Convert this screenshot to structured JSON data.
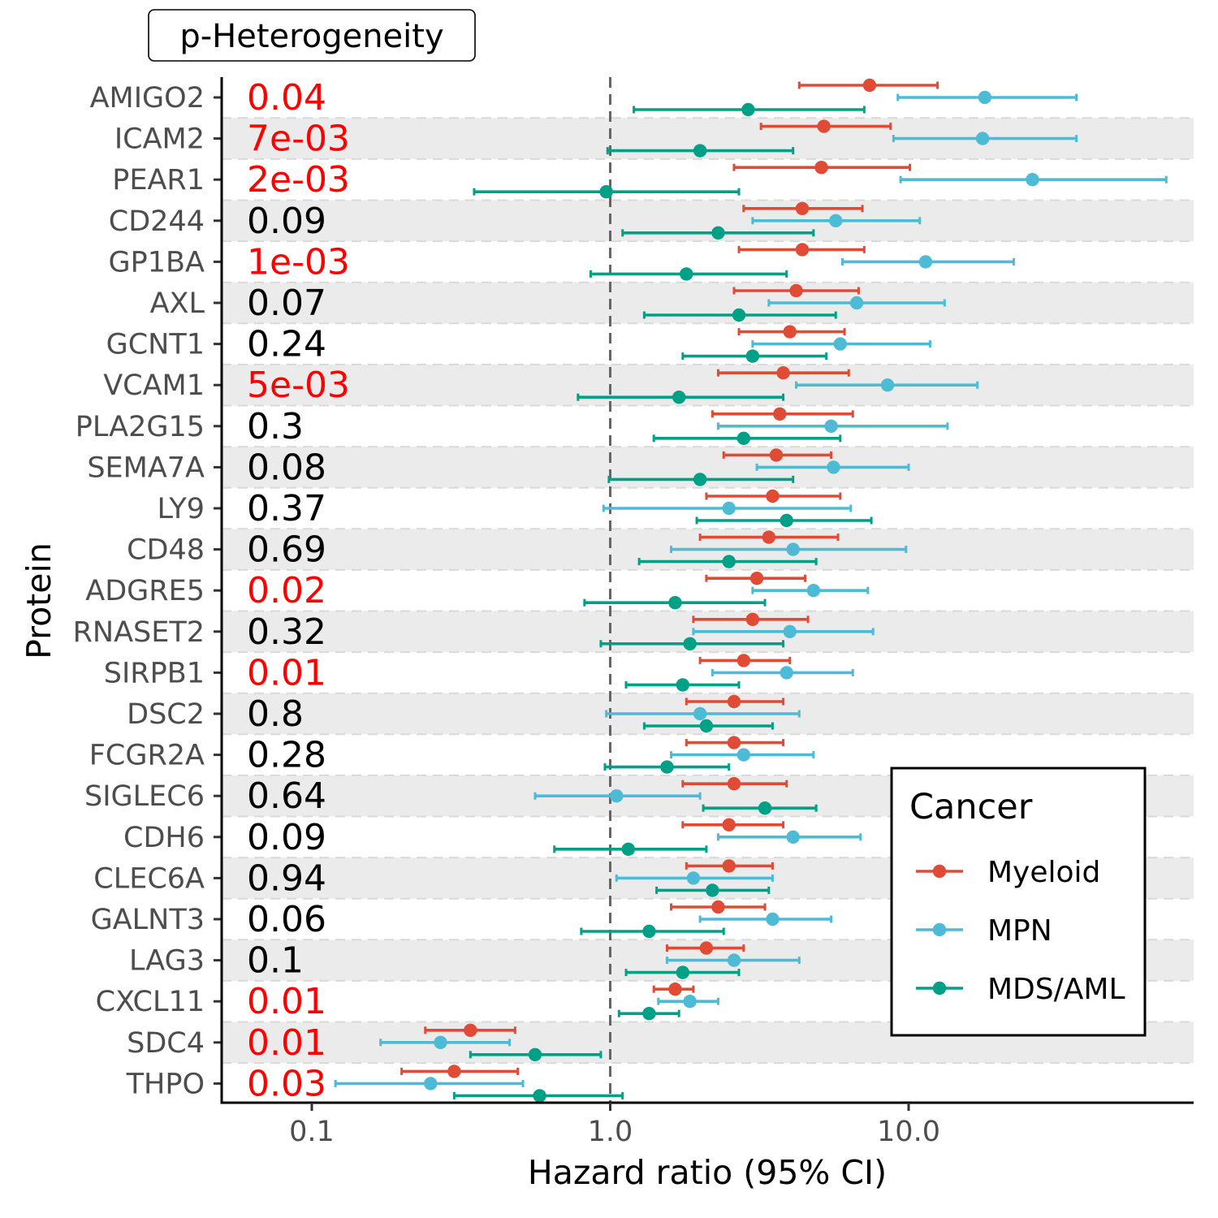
{
  "chart_data": {
    "type": "scatter",
    "subtype": "forest-plot",
    "xlabel": "Hazard ratio (95% CI)",
    "ylabel": "Protein",
    "x_scale": "log10",
    "xlim": [
      0.052,
      90
    ],
    "x_ticks": [
      0.1,
      1.0,
      10.0
    ],
    "x_tick_labels": [
      "0.1",
      "1.0",
      "10.0"
    ],
    "reference_line": 1.0,
    "pvalue_header": "p-Heterogeneity",
    "legend": {
      "title": "Cancer",
      "position": "right",
      "entries": [
        "Myeloid",
        "MPN",
        "MDS/AML"
      ]
    },
    "colors": {
      "Myeloid": "#E04B35",
      "MPN": "#4DBBD5",
      "MDS/AML": "#00A087",
      "significant_p": "#FF0000",
      "nonsignificant_p": "#000000",
      "stripe": "#EBEBEB",
      "reference_line": "#666666"
    },
    "proteins": [
      "AMIGO2",
      "ICAM2",
      "PEAR1",
      "CD244",
      "GP1BA",
      "AXL",
      "GCNT1",
      "VCAM1",
      "PLA2G15",
      "SEMA7A",
      "LY9",
      "CD48",
      "ADGRE5",
      "RNASET2",
      "SIRPB1",
      "DSC2",
      "FCGR2A",
      "SIGLEC6",
      "CDH6",
      "CLEC6A",
      "GALNT3",
      "LAG3",
      "CXCL11",
      "SDC4",
      "THPO"
    ],
    "p_heterogeneity": [
      "0.04",
      "7e-03",
      "2e-03",
      "0.09",
      "1e-03",
      "0.07",
      "0.24",
      "5e-03",
      "0.3",
      "0.08",
      "0.37",
      "0.69",
      "0.02",
      "0.32",
      "0.01",
      "0.8",
      "0.28",
      "0.64",
      "0.09",
      "0.94",
      "0.06",
      "0.1",
      "0.01",
      "0.01",
      "0.03"
    ],
    "p_significant": [
      true,
      true,
      true,
      false,
      true,
      false,
      false,
      true,
      false,
      false,
      false,
      false,
      true,
      false,
      true,
      false,
      false,
      false,
      false,
      false,
      false,
      false,
      true,
      true,
      true
    ],
    "series": [
      {
        "name": "Myeloid",
        "hr": [
          7.4,
          5.2,
          5.1,
          4.4,
          4.4,
          4.2,
          4.0,
          3.8,
          3.7,
          3.6,
          3.5,
          3.4,
          3.1,
          3.0,
          2.8,
          2.6,
          2.6,
          2.6,
          2.5,
          2.5,
          2.3,
          2.1,
          1.65,
          0.34,
          0.3
        ],
        "lower": [
          4.3,
          3.2,
          2.6,
          2.8,
          2.7,
          2.6,
          2.7,
          2.3,
          2.2,
          2.4,
          2.1,
          2.0,
          2.1,
          1.9,
          2.0,
          1.8,
          1.8,
          1.75,
          1.75,
          1.8,
          1.6,
          1.55,
          1.4,
          0.24,
          0.2
        ],
        "upper": [
          12.5,
          8.7,
          10.1,
          7.0,
          7.1,
          6.8,
          6.1,
          6.3,
          6.5,
          5.5,
          5.9,
          5.8,
          4.5,
          4.6,
          4.0,
          3.8,
          3.8,
          3.9,
          3.8,
          3.5,
          3.3,
          2.8,
          1.9,
          0.48,
          0.49
        ]
      },
      {
        "name": "MPN",
        "hr": [
          18.0,
          17.7,
          26.0,
          5.7,
          11.4,
          6.7,
          5.9,
          8.5,
          5.5,
          5.6,
          2.5,
          4.1,
          4.8,
          4.0,
          3.9,
          2.0,
          2.8,
          1.05,
          4.1,
          1.9,
          3.5,
          2.6,
          1.85,
          0.27,
          0.25
        ],
        "lower": [
          9.2,
          8.9,
          9.4,
          3.0,
          6.0,
          3.4,
          3.0,
          4.2,
          2.3,
          3.1,
          0.95,
          1.6,
          3.0,
          1.9,
          2.2,
          0.97,
          1.6,
          0.56,
          2.3,
          1.05,
          2.0,
          1.55,
          1.45,
          0.17,
          0.12
        ],
        "upper": [
          36.5,
          36.5,
          73.0,
          10.9,
          22.5,
          13.2,
          11.8,
          17.0,
          13.5,
          10.0,
          6.4,
          9.8,
          7.3,
          7.6,
          6.5,
          4.3,
          4.8,
          2.0,
          6.9,
          3.5,
          5.5,
          4.3,
          2.3,
          0.46,
          0.51
        ]
      },
      {
        "name": "MDS/AML",
        "hr": [
          2.9,
          2.0,
          0.97,
          2.3,
          1.8,
          2.7,
          3.0,
          1.7,
          2.8,
          2.0,
          3.9,
          2.5,
          1.65,
          1.85,
          1.75,
          2.1,
          1.55,
          3.3,
          1.15,
          2.2,
          1.35,
          1.75,
          1.35,
          0.56,
          0.58
        ],
        "lower": [
          1.2,
          0.98,
          0.35,
          1.1,
          0.86,
          1.3,
          1.75,
          0.78,
          1.4,
          0.99,
          1.95,
          1.25,
          0.82,
          0.93,
          1.13,
          1.3,
          0.96,
          2.05,
          0.65,
          1.43,
          0.8,
          1.13,
          1.07,
          0.34,
          0.3
        ],
        "upper": [
          7.1,
          4.1,
          2.7,
          4.8,
          3.9,
          5.7,
          5.3,
          3.8,
          5.9,
          4.1,
          7.5,
          4.9,
          3.3,
          3.8,
          2.7,
          3.5,
          2.5,
          4.9,
          2.1,
          3.4,
          2.4,
          2.7,
          1.7,
          0.93,
          1.1
        ]
      }
    ]
  }
}
